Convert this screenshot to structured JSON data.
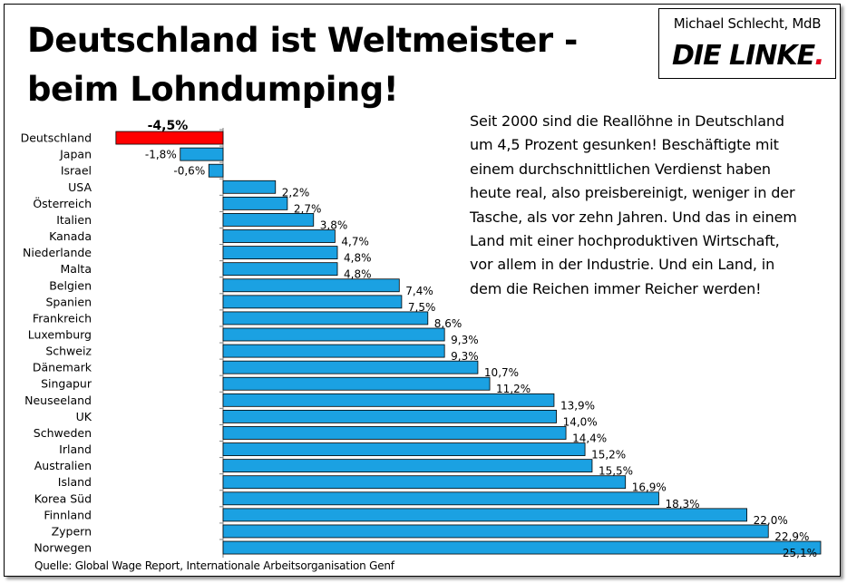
{
  "header": {
    "title_line1": "Deutschland ist Weltmeister -",
    "title_line2": "beim Lohndumping!"
  },
  "logo": {
    "author": "Michael Schlecht, MdB",
    "party": "DIE LINKE",
    "party_dot": ".",
    "accent_color": "#e2001a"
  },
  "description": {
    "lines": [
      "Seit 2000 sind die Reallöhne  in Deutschland",
      "um 4,5 Prozent gesunken! Beschäftigte  mit",
      "einem durchschnittlichen  Verdienst  haben",
      "heute real, also preisbereinigt,  weniger in der",
      "Tasche, als vor zehn Jahren. Und das in einem",
      "Land mit einer hochproduktiven Wirtschaft,",
      "vor allem in der Industrie.  Und ein Land, in",
      "dem die Reichen immer Reicher  werden!"
    ]
  },
  "source": "Quelle: Global Wage Report, Internationale Arbeitsorganisation Genf",
  "chart_data": {
    "type": "bar",
    "orientation": "horizontal",
    "title": "",
    "xlabel": "",
    "ylabel": "",
    "xlim": [
      -4.5,
      25.1
    ],
    "grid": false,
    "legend": "none",
    "colors": {
      "positive": "#1ba1e2",
      "negative": "#1ba1e2",
      "highlight": "#ff0000"
    },
    "categories": [
      "Deutschland",
      "Japan",
      "Israel",
      "USA",
      "Österreich",
      "Italien",
      "Kanada",
      "Niederlande",
      "Malta",
      "Belgien",
      "Spanien",
      "Frankreich",
      "Luxemburg",
      "Schweiz",
      "Dänemark",
      "Singapur",
      "Neuseeland",
      "UK",
      "Schweden",
      "Irland",
      "Australien",
      "Island",
      "Korea Süd",
      "Finnland",
      "Zypern",
      "Norwegen"
    ],
    "values": [
      -4.5,
      -1.8,
      -0.6,
      2.2,
      2.7,
      3.8,
      4.7,
      4.8,
      4.8,
      7.4,
      7.5,
      8.6,
      9.3,
      9.3,
      10.7,
      11.2,
      13.9,
      14.0,
      14.4,
      15.2,
      15.5,
      16.9,
      18.3,
      22.0,
      22.9,
      25.1
    ],
    "labels": [
      "-4,5%",
      "-1,8%",
      "-0,6%",
      "2,2%",
      "2,7%",
      "3,8%",
      "4,7%",
      "4,8%",
      "4,8%",
      "7,4%",
      "7,5%",
      "8,6%",
      "9,3%",
      "9,3%",
      "10,7%",
      "11,2%",
      "13,9%",
      "14,0%",
      "14,4%",
      "15,2%",
      "15,5%",
      "16,9%",
      "18,3%",
      "22,0%",
      "22,9%",
      "25,1%"
    ],
    "highlight_index": 0
  }
}
